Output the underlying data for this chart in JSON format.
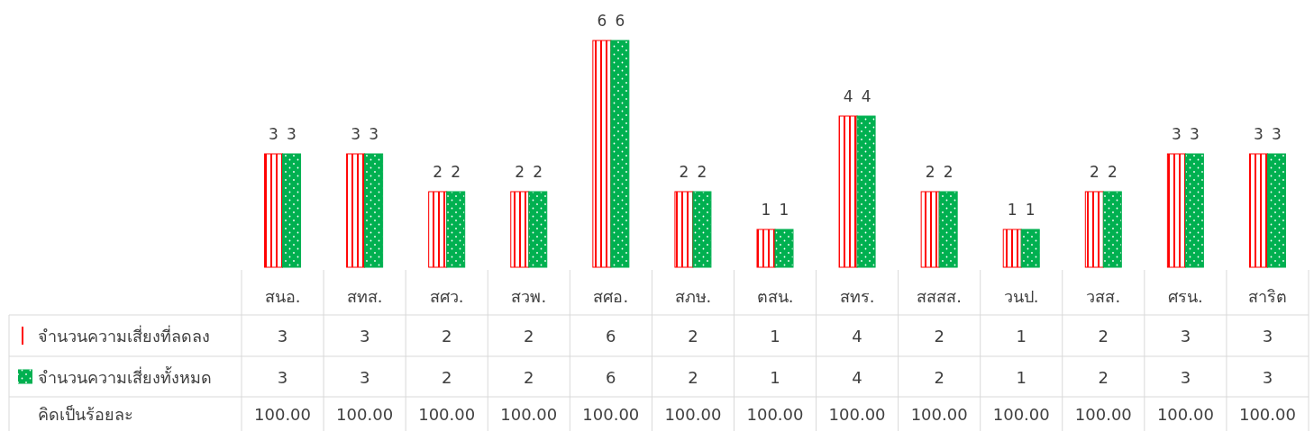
{
  "chart_data": {
    "type": "bar",
    "categories": [
      "สนอ.",
      "สทส.",
      "สศว.",
      "สวพ.",
      "สศอ.",
      "สภษ.",
      "ตสน.",
      "สทร.",
      "สสสส.",
      "วนป.",
      "วสส.",
      "ศรน.",
      "สาริต"
    ],
    "series": [
      {
        "name": "จำนวนความเสี่ยงที่ลดลง",
        "color": "#ff0000",
        "values": [
          3,
          3,
          2,
          2,
          6,
          2,
          1,
          4,
          2,
          1,
          2,
          3,
          3
        ]
      },
      {
        "name": "จำนวนความเสี่ยงทั้งหมด",
        "color": "#00b050",
        "values": [
          3,
          3,
          2,
          2,
          6,
          2,
          1,
          4,
          2,
          1,
          2,
          3,
          3
        ]
      }
    ],
    "data_labels": true,
    "legend": "bottom",
    "annotations": [
      "3",
      "3",
      "2",
      "2",
      "6",
      "2",
      "1",
      "4",
      "2",
      "1",
      "2",
      "3",
      "3",
      "3",
      "3",
      "2",
      "2",
      "6",
      "2",
      "1",
      "4",
      "2",
      "1",
      "2",
      "3",
      "3",
      "คิดเป็นร้อยละ",
      "100.00",
      "100.00",
      "100.00",
      "100.00",
      "100.00",
      "100.00",
      "100.00",
      "100.00",
      "100.00",
      "100.00",
      "100.00",
      "100.00",
      "100.00"
    ]
  }
}
